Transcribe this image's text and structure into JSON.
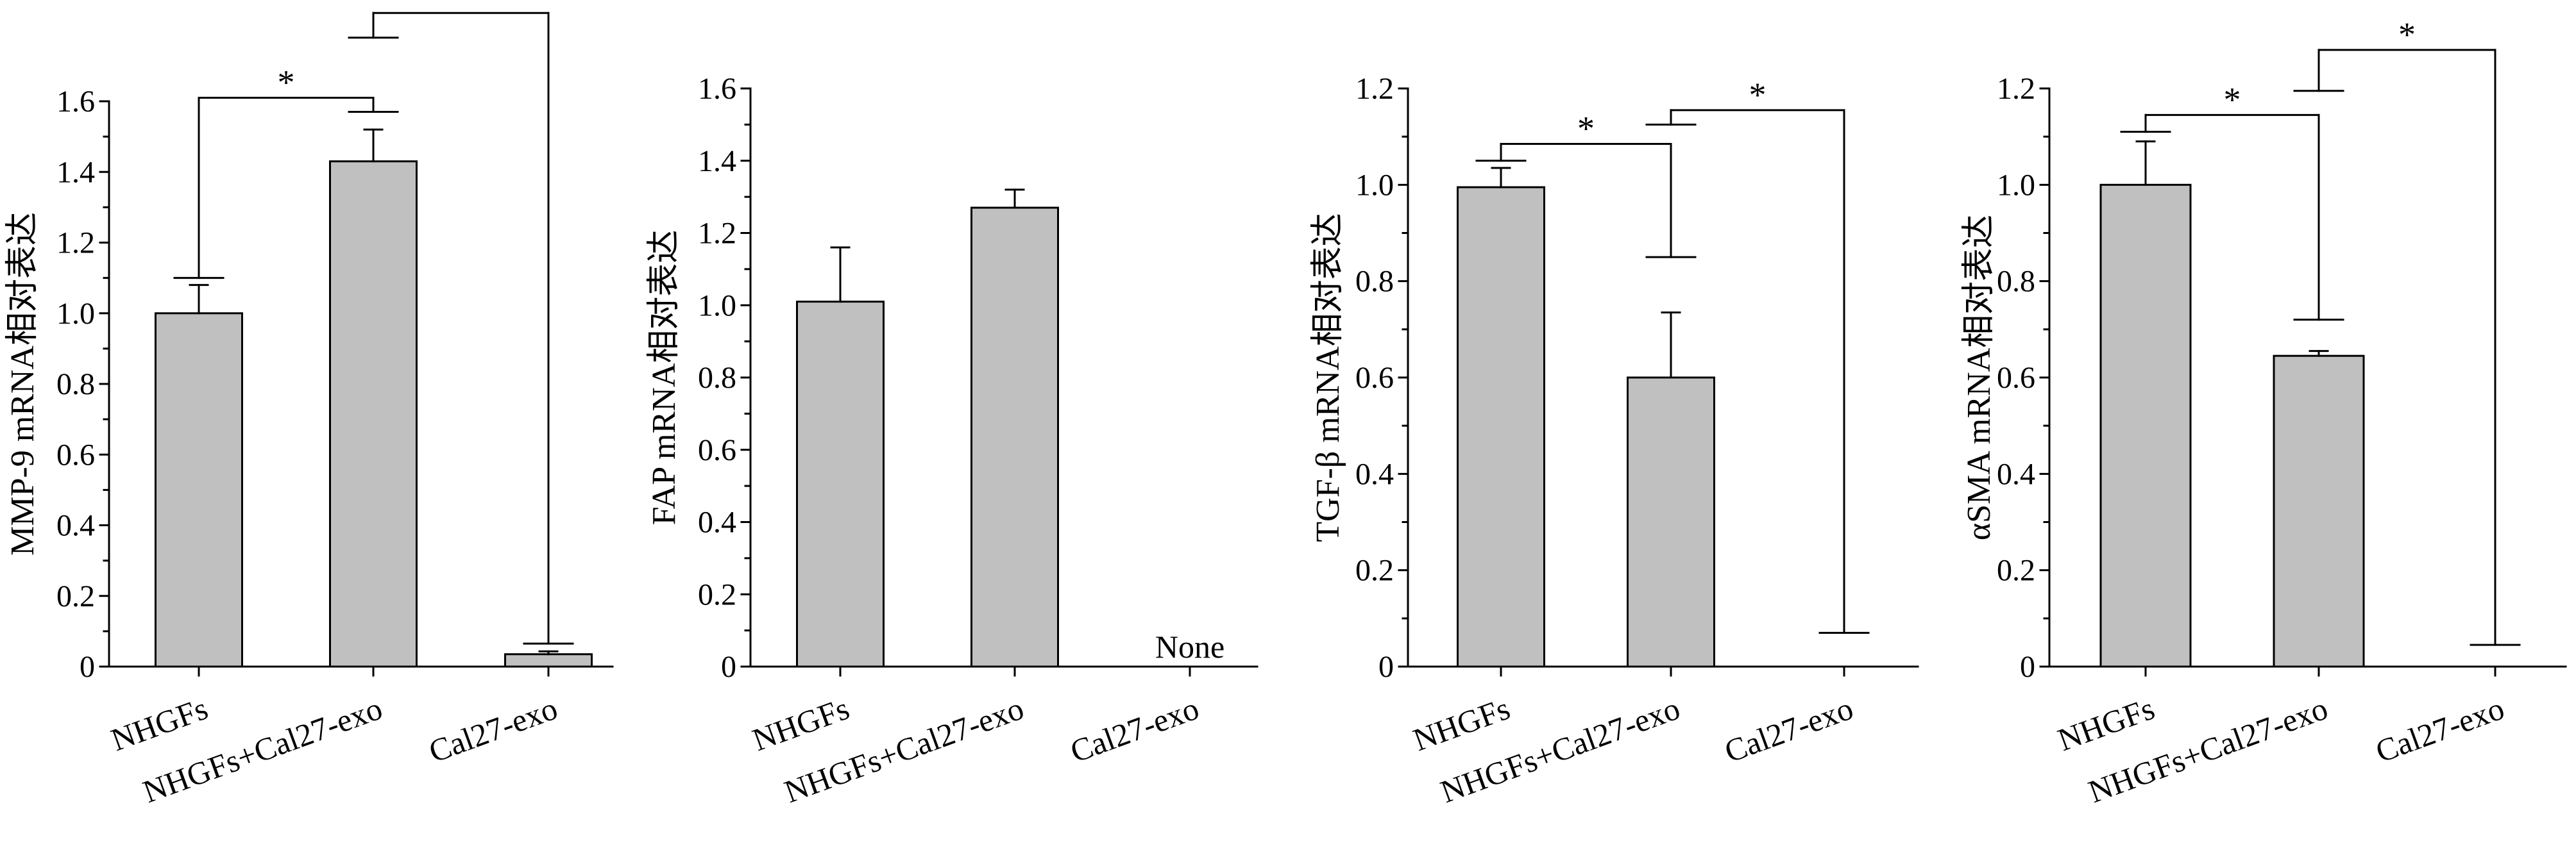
{
  "colors": {
    "bar_fill": "#c0c0c0",
    "stroke": "#000000",
    "background": "#ffffff"
  },
  "chart_data": [
    {
      "type": "bar",
      "ylabel": "MMP-9 mRNA相对表达",
      "ylim": [
        0,
        1.6
      ],
      "yticks": [
        "0",
        "0.2",
        "0.4",
        "0.6",
        "0.8",
        "1.0",
        "1.2",
        "1.4",
        "1.6"
      ],
      "categories": [
        "NHGFs",
        "NHGFs+Cal27-exo",
        "Cal27-exo"
      ],
      "values": [
        1.0,
        1.43,
        0.035
      ],
      "errors": [
        0.08,
        0.09,
        0.008
      ],
      "empty_label": "",
      "brackets": [
        {
          "from": 0,
          "to": 1,
          "label": "*",
          "from_y": 1.1,
          "to_y": 1.57,
          "top_y": 1.61
        },
        {
          "from": 1,
          "to": 2,
          "label": "*",
          "from_y": 1.78,
          "to_y": 0.065,
          "top_y": 1.85
        }
      ]
    },
    {
      "type": "bar",
      "ylabel": "FAP mRNA相对表达",
      "ylim": [
        0,
        1.6
      ],
      "yticks": [
        "0",
        "0.2",
        "0.4",
        "0.6",
        "0.8",
        "1.0",
        "1.2",
        "1.4",
        "1.6"
      ],
      "categories": [
        "NHGFs",
        "NHGFs+Cal27-exo",
        "Cal27-exo"
      ],
      "values": [
        1.01,
        1.27,
        null
      ],
      "errors": [
        0.15,
        0.05,
        null
      ],
      "empty_label": "None",
      "brackets": []
    },
    {
      "type": "bar",
      "ylabel": "TGF-β mRNA相对表达",
      "ylim": [
        0,
        1.2
      ],
      "yticks": [
        "0",
        "0.2",
        "0.4",
        "0.6",
        "0.8",
        "1.0",
        "1.2"
      ],
      "categories": [
        "NHGFs",
        "NHGFs+Cal27-exo",
        "Cal27-exo"
      ],
      "values": [
        0.995,
        0.6,
        null
      ],
      "errors": [
        0.04,
        0.135,
        null
      ],
      "empty_label": "",
      "brackets": [
        {
          "from": 0,
          "to": 1,
          "label": "*",
          "from_y": 1.05,
          "to_y": 0.85,
          "top_y": 1.085
        },
        {
          "from": 1,
          "to": 2,
          "label": "*",
          "from_y": 1.125,
          "to_y": 0.07,
          "top_y": 1.155
        }
      ]
    },
    {
      "type": "bar",
      "ylabel": "αSMA mRNA相对表达",
      "ylim": [
        0,
        1.2
      ],
      "yticks": [
        "0",
        "0.2",
        "0.4",
        "0.6",
        "0.8",
        "1.0",
        "1.2"
      ],
      "categories": [
        "NHGFs",
        "NHGFs+Cal27-exo",
        "Cal27-exo"
      ],
      "values": [
        1.0,
        0.645,
        null
      ],
      "errors": [
        0.09,
        0.01,
        null
      ],
      "empty_label": "",
      "brackets": [
        {
          "from": 0,
          "to": 1,
          "label": "*",
          "from_y": 1.11,
          "to_y": 0.72,
          "top_y": 1.145
        },
        {
          "from": 1,
          "to": 2,
          "label": "*",
          "from_y": 1.195,
          "to_y": 0.045,
          "top_y": 1.28
        }
      ]
    }
  ]
}
